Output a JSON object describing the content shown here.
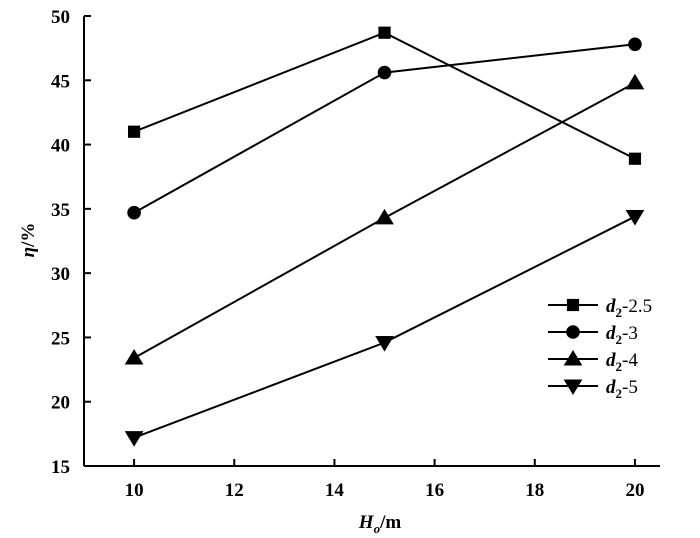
{
  "chart_data": {
    "type": "line",
    "xlabel": {
      "main": "H",
      "sub": "o",
      "unit": "/m"
    },
    "ylabel": {
      "main": "η",
      "unit": "/%"
    },
    "xlim": [
      9,
      20.5
    ],
    "ylim": [
      15,
      50
    ],
    "xticks": [
      10,
      12,
      14,
      16,
      18,
      20
    ],
    "yticks": [
      15,
      20,
      25,
      30,
      35,
      40,
      45,
      50
    ],
    "grid": false,
    "legend_position": "right",
    "series": [
      {
        "name": "d2-2.5",
        "name_main": "d",
        "name_sub": "2",
        "name_rest": "-2.5",
        "marker": "square",
        "x": [
          10,
          15,
          20
        ],
        "y": [
          41.0,
          48.7,
          38.9
        ]
      },
      {
        "name": "d2-3",
        "name_main": "d",
        "name_sub": "2",
        "name_rest": "-3",
        "marker": "circle",
        "x": [
          10,
          15,
          20
        ],
        "y": [
          34.7,
          45.6,
          47.8
        ]
      },
      {
        "name": "d2-4",
        "name_main": "d",
        "name_sub": "2",
        "name_rest": "-4",
        "marker": "triangle-up",
        "x": [
          10,
          15,
          20
        ],
        "y": [
          23.4,
          34.3,
          44.8
        ]
      },
      {
        "name": "d2-5",
        "name_main": "d",
        "name_sub": "2",
        "name_rest": "-5",
        "marker": "triangle-down",
        "x": [
          10,
          15,
          20
        ],
        "y": [
          17.2,
          24.6,
          34.4
        ]
      }
    ]
  }
}
